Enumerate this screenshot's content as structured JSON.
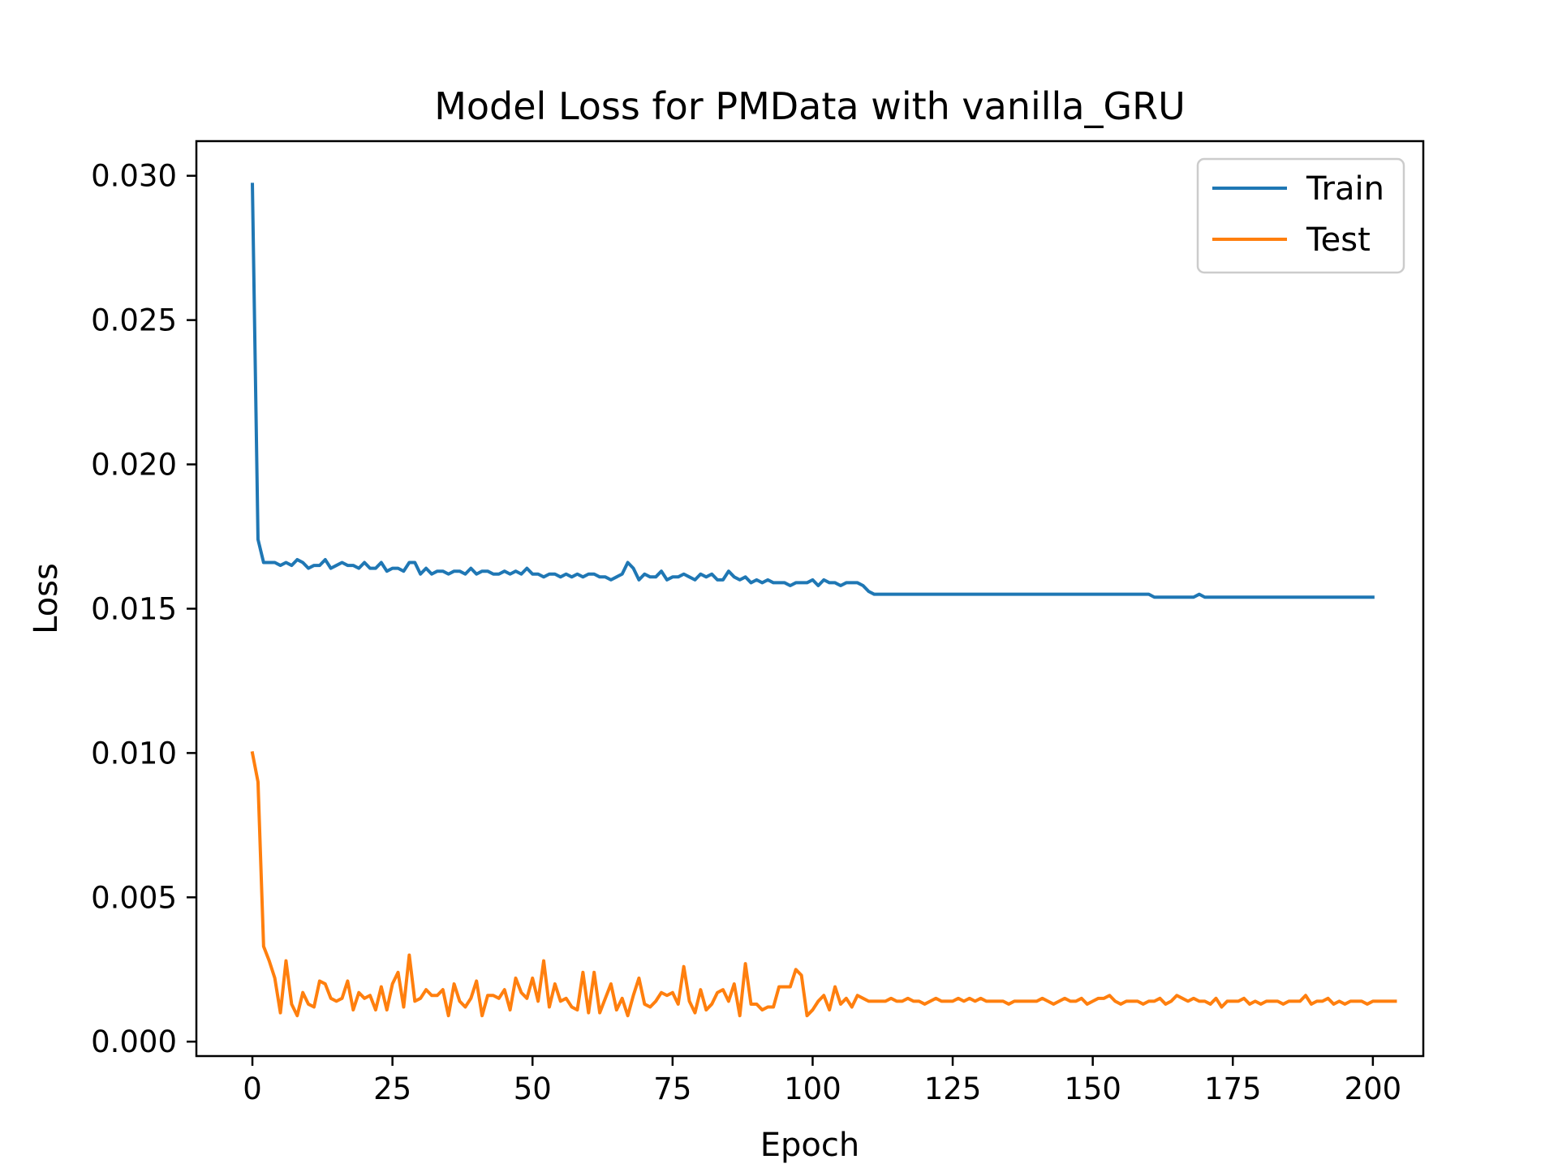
{
  "chart_data": {
    "type": "line",
    "title": "Model Loss for PMData with vanilla_GRU",
    "xlabel": "Epoch",
    "ylabel": "Loss",
    "xlim": [
      -10,
      209
    ],
    "ylim": [
      -0.0005,
      0.0312
    ],
    "xticks": [
      0,
      25,
      50,
      75,
      100,
      125,
      150,
      175,
      200
    ],
    "yticks": [
      0.0,
      0.005,
      0.01,
      0.015,
      0.02,
      0.025,
      0.03
    ],
    "xtick_labels": [
      "0",
      "25",
      "50",
      "75",
      "100",
      "125",
      "150",
      "175",
      "200"
    ],
    "ytick_labels": [
      "0.000",
      "0.005",
      "0.010",
      "0.015",
      "0.020",
      "0.025",
      "0.030"
    ],
    "grid": false,
    "legend_position": "top-right",
    "series": [
      {
        "name": "Train",
        "color": "#1f77b4",
        "values": [
          0.0297,
          0.0174,
          0.0166,
          0.0166,
          0.0166,
          0.0165,
          0.0166,
          0.0165,
          0.0167,
          0.0166,
          0.0164,
          0.0165,
          0.0165,
          0.0167,
          0.0164,
          0.0165,
          0.0166,
          0.0165,
          0.0165,
          0.0164,
          0.0166,
          0.0164,
          0.0164,
          0.0166,
          0.0163,
          0.0164,
          0.0164,
          0.0163,
          0.0166,
          0.0166,
          0.0162,
          0.0164,
          0.0162,
          0.0163,
          0.0163,
          0.0162,
          0.0163,
          0.0163,
          0.0162,
          0.0164,
          0.0162,
          0.0163,
          0.0163,
          0.0162,
          0.0162,
          0.0163,
          0.0162,
          0.0163,
          0.0162,
          0.0164,
          0.0162,
          0.0162,
          0.0161,
          0.0162,
          0.0162,
          0.0161,
          0.0162,
          0.0161,
          0.0162,
          0.0161,
          0.0162,
          0.0162,
          0.0161,
          0.0161,
          0.016,
          0.0161,
          0.0162,
          0.0166,
          0.0164,
          0.016,
          0.0162,
          0.0161,
          0.0161,
          0.0163,
          0.016,
          0.0161,
          0.0161,
          0.0162,
          0.0161,
          0.016,
          0.0162,
          0.0161,
          0.0162,
          0.016,
          0.016,
          0.0163,
          0.0161,
          0.016,
          0.0161,
          0.0159,
          0.016,
          0.0159,
          0.016,
          0.0159,
          0.0159,
          0.0159,
          0.0158,
          0.0159,
          0.0159,
          0.0159,
          0.016,
          0.0158,
          0.016,
          0.0159,
          0.0159,
          0.0158,
          0.0159,
          0.0159,
          0.0159,
          0.0158,
          0.0156,
          0.0155,
          0.0155,
          0.0155,
          0.0155,
          0.0155,
          0.0155,
          0.0155,
          0.0155,
          0.0155,
          0.0155,
          0.0155,
          0.0155,
          0.0155,
          0.0155,
          0.0155,
          0.0155,
          0.0155,
          0.0155,
          0.0155,
          0.0155,
          0.0155,
          0.0155,
          0.0155,
          0.0155,
          0.0155,
          0.0155,
          0.0155,
          0.0155,
          0.0155,
          0.0155,
          0.0155,
          0.0155,
          0.0155,
          0.0155,
          0.0155,
          0.0155,
          0.0155,
          0.0155,
          0.0155,
          0.0155,
          0.0155,
          0.0155,
          0.0155,
          0.0155,
          0.0155,
          0.0155,
          0.0155,
          0.0155,
          0.0155,
          0.0155,
          0.0154,
          0.0154,
          0.0154,
          0.0154,
          0.0154,
          0.0154,
          0.0154,
          0.0154,
          0.0155,
          0.0154,
          0.0154,
          0.0154,
          0.0154,
          0.0154,
          0.0154,
          0.0154,
          0.0154,
          0.0154,
          0.0154,
          0.0154,
          0.0154,
          0.0154,
          0.0154,
          0.0154,
          0.0154,
          0.0154,
          0.0154,
          0.0154,
          0.0154,
          0.0154,
          0.0154,
          0.0154,
          0.0154,
          0.0154,
          0.0154,
          0.0154,
          0.0154,
          0.0154,
          0.0154,
          0.0154
        ]
      },
      {
        "name": "Test",
        "color": "#ff7f0e",
        "values": [
          0.01,
          0.009,
          0.0033,
          0.0028,
          0.0022,
          0.001,
          0.0028,
          0.0013,
          0.0009,
          0.0017,
          0.0013,
          0.0012,
          0.0021,
          0.002,
          0.0015,
          0.0014,
          0.0015,
          0.0021,
          0.0011,
          0.0017,
          0.0015,
          0.0016,
          0.0011,
          0.0019,
          0.0011,
          0.002,
          0.0024,
          0.0012,
          0.003,
          0.0014,
          0.0015,
          0.0018,
          0.0016,
          0.0016,
          0.0018,
          0.0009,
          0.002,
          0.0014,
          0.0012,
          0.0015,
          0.0021,
          0.0009,
          0.0016,
          0.0016,
          0.0015,
          0.0018,
          0.0011,
          0.0022,
          0.0017,
          0.0015,
          0.0022,
          0.0014,
          0.0028,
          0.0012,
          0.002,
          0.0014,
          0.0015,
          0.0012,
          0.0011,
          0.0024,
          0.001,
          0.0024,
          0.001,
          0.0015,
          0.002,
          0.0011,
          0.0015,
          0.0009,
          0.0016,
          0.0022,
          0.0013,
          0.0012,
          0.0014,
          0.0017,
          0.0016,
          0.0017,
          0.0013,
          0.0026,
          0.0014,
          0.001,
          0.0018,
          0.0011,
          0.0013,
          0.0017,
          0.0018,
          0.0014,
          0.002,
          0.0009,
          0.0027,
          0.0013,
          0.0013,
          0.0011,
          0.0012,
          0.0012,
          0.0019,
          0.0019,
          0.0019,
          0.0025,
          0.0023,
          0.0009,
          0.0011,
          0.0014,
          0.0016,
          0.0011,
          0.0019,
          0.0013,
          0.0015,
          0.0012,
          0.0016,
          0.0015,
          0.0014,
          0.0014,
          0.0014,
          0.0014,
          0.0015,
          0.0014,
          0.0014,
          0.0015,
          0.0014,
          0.0014,
          0.0013,
          0.0014,
          0.0015,
          0.0014,
          0.0014,
          0.0014,
          0.0015,
          0.0014,
          0.0015,
          0.0014,
          0.0015,
          0.0014,
          0.0014,
          0.0014,
          0.0014,
          0.0013,
          0.0014,
          0.0014,
          0.0014,
          0.0014,
          0.0014,
          0.0015,
          0.0014,
          0.0013,
          0.0014,
          0.0015,
          0.0014,
          0.0014,
          0.0015,
          0.0013,
          0.0014,
          0.0015,
          0.0015,
          0.0016,
          0.0014,
          0.0013,
          0.0014,
          0.0014,
          0.0014,
          0.0013,
          0.0014,
          0.0014,
          0.0015,
          0.0013,
          0.0014,
          0.0016,
          0.0015,
          0.0014,
          0.0015,
          0.0014,
          0.0014,
          0.0013,
          0.0015,
          0.0012,
          0.0014,
          0.0014,
          0.0014,
          0.0015,
          0.0013,
          0.0014,
          0.0013,
          0.0014,
          0.0014,
          0.0014,
          0.0013,
          0.0014,
          0.0014,
          0.0014,
          0.0016,
          0.0013,
          0.0014,
          0.0014,
          0.0015,
          0.0013,
          0.0014,
          0.0013,
          0.0014,
          0.0014,
          0.0014,
          0.0013,
          0.0014,
          0.0014,
          0.0014,
          0.0014,
          0.0014
        ]
      }
    ]
  }
}
